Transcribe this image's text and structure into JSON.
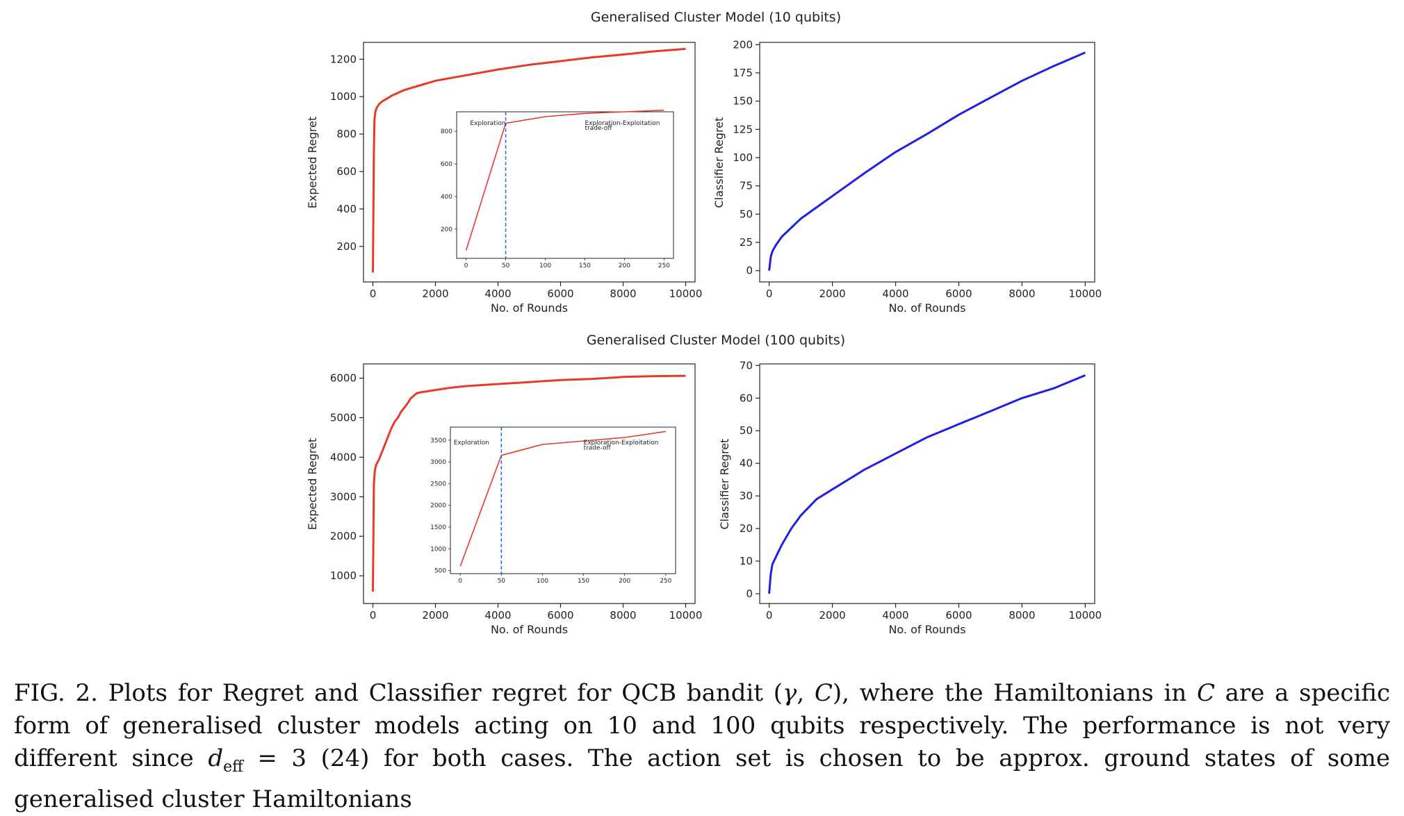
{
  "figure": {
    "row_titles": [
      "Generalised Cluster Model (10 qubits)",
      "Generalised Cluster Model (100 qubits)"
    ],
    "caption": {
      "lead": "FIG. 2.  Plots for Regret and Classifier regret for QCB bandit (",
      "gamma": "γ",
      "comma": ", ",
      "C1": "C",
      "mid1": "), where the Hamiltonians in ",
      "C2": "C",
      "mid2": " are a specific form of generalised cluster models acting on 10 and 100 qubits respectively.  The performance is not very different since ",
      "d": "d",
      "sub": "eff",
      "eq": " = 3  (24) for both cases.  The action set is chosen to be approx. ground states of some generalised cluster Hamiltonians"
    }
  },
  "chart_data": [
    {
      "type": "line",
      "title": "",
      "xlabel": "No. of Rounds",
      "ylabel": "Expected Regret",
      "xlim": [
        -300,
        10300
      ],
      "ylim": [
        10,
        1290
      ],
      "xticks": [
        0,
        2000,
        4000,
        6000,
        8000,
        10000
      ],
      "yticks": [
        200,
        400,
        600,
        800,
        1000,
        1200
      ],
      "color": "#e8392b",
      "series": [
        {
          "x": [
            0,
            30,
            50,
            80,
            120,
            200,
            300,
            450,
            600,
            800,
            1000,
            1500,
            2000,
            3000,
            4000,
            5000,
            6000,
            7000,
            8000,
            9000,
            10000
          ],
          "y": [
            60,
            700,
            880,
            920,
            940,
            960,
            975,
            990,
            1005,
            1020,
            1035,
            1060,
            1085,
            1115,
            1145,
            1170,
            1190,
            1210,
            1225,
            1242,
            1255
          ]
        }
      ],
      "inset": {
        "xlim": [
          -12,
          262
        ],
        "ylim": [
          20,
          920
        ],
        "xticks": [
          0,
          50,
          100,
          150,
          200,
          250
        ],
        "yticks": [
          200,
          400,
          600,
          800
        ],
        "series": [
          {
            "x": [
              0,
              50,
              100,
              150,
              200,
              250
            ],
            "y": [
              70,
              850,
              890,
              910,
              920,
              930
            ]
          }
        ],
        "vline_x": 50,
        "annotations": [
          {
            "text": "Exploration",
            "x": 5,
            "y": 840
          },
          {
            "text": "Exploration-Exploitation",
            "x": 150,
            "y": 840
          },
          {
            "text": "trade-off",
            "x": 150,
            "y": 810
          }
        ]
      }
    },
    {
      "type": "line",
      "title": "",
      "xlabel": "No. of Rounds",
      "ylabel": "Classifier Regret",
      "xlim": [
        -300,
        10300
      ],
      "ylim": [
        -10,
        202
      ],
      "xticks": [
        0,
        2000,
        4000,
        6000,
        8000,
        10000
      ],
      "yticks": [
        0,
        25,
        50,
        75,
        100,
        125,
        150,
        175,
        200
      ],
      "color": "#1f1fe6",
      "series": [
        {
          "x": [
            0,
            50,
            100,
            200,
            400,
            700,
            1000,
            1500,
            2000,
            3000,
            4000,
            5000,
            6000,
            7000,
            8000,
            9000,
            10000
          ],
          "y": [
            0,
            12,
            17,
            22,
            30,
            38,
            46,
            56,
            66,
            86,
            105,
            121,
            138,
            153,
            168,
            181,
            193
          ]
        }
      ]
    },
    {
      "type": "line",
      "title": "",
      "xlabel": "No. of Rounds",
      "ylabel": "Expected Regret",
      "xlim": [
        -300,
        10300
      ],
      "ylim": [
        300,
        6360
      ],
      "xticks": [
        0,
        2000,
        4000,
        6000,
        8000,
        10000
      ],
      "yticks": [
        1000,
        2000,
        3000,
        4000,
        5000,
        6000
      ],
      "color": "#e8392b",
      "series": [
        {
          "x": [
            0,
            30,
            60,
            100,
            200,
            300,
            400,
            500,
            600,
            700,
            800,
            900,
            1000,
            1100,
            1200,
            1400,
            1600,
            2000,
            2500,
            3000,
            4000,
            5000,
            6000,
            7000,
            8000,
            9000,
            10000
          ],
          "y": [
            600,
            3300,
            3650,
            3800,
            3950,
            4150,
            4350,
            4550,
            4750,
            4900,
            5000,
            5150,
            5250,
            5350,
            5480,
            5620,
            5650,
            5700,
            5760,
            5800,
            5850,
            5900,
            5950,
            5980,
            6030,
            6050,
            6060
          ]
        }
      ],
      "inset": {
        "xlim": [
          -12,
          262
        ],
        "ylim": [
          430,
          3800
        ],
        "xticks": [
          0,
          50,
          100,
          150,
          200,
          250
        ],
        "yticks": [
          500,
          1000,
          1500,
          2000,
          2500,
          3000,
          3500
        ],
        "series": [
          {
            "x": [
              0,
              50,
              100,
              150,
              200,
              250
            ],
            "y": [
              600,
              3150,
              3400,
              3480,
              3560,
              3700
            ]
          }
        ],
        "vline_x": 50,
        "annotations": [
          {
            "text": "Exploration",
            "x": -8,
            "y": 3400
          },
          {
            "text": "Exploration-Exploitation",
            "x": 150,
            "y": 3400
          },
          {
            "text": "trade-off",
            "x": 150,
            "y": 3280
          }
        ]
      }
    },
    {
      "type": "line",
      "title": "",
      "xlabel": "No. of Rounds",
      "ylabel": "Classifier Regret",
      "xlim": [
        -300,
        10300
      ],
      "ylim": [
        -3,
        70.5
      ],
      "xticks": [
        0,
        2000,
        4000,
        6000,
        8000,
        10000
      ],
      "yticks": [
        0,
        10,
        20,
        30,
        40,
        50,
        60,
        70
      ],
      "color": "#1f1fe6",
      "series": [
        {
          "x": [
            0,
            50,
            100,
            200,
            400,
            700,
            1000,
            1500,
            2000,
            3000,
            4000,
            5000,
            6000,
            7000,
            8000,
            9000,
            10000
          ],
          "y": [
            0,
            6,
            9,
            11,
            15,
            20,
            24,
            29,
            32,
            38,
            43,
            48,
            52,
            56,
            60,
            63,
            67
          ]
        }
      ]
    }
  ]
}
